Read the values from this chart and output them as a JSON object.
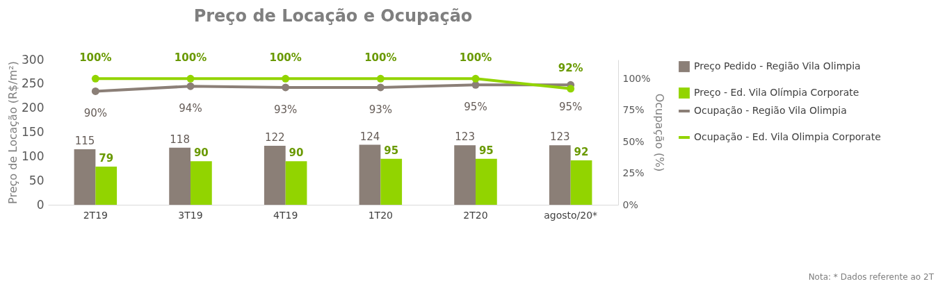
{
  "chart_data": {
    "type": "bar",
    "title": "Preço de Locação e Ocupação",
    "ylabel": "Preço de Locação (R$/m²)",
    "y2label": "Ocupação (%)",
    "categories": [
      "2T19",
      "3T19",
      "4T19",
      "1T20",
      "2T20",
      "agosto/20*"
    ],
    "ylim": [
      0,
      300
    ],
    "yticks": [
      0,
      50,
      100,
      150,
      200,
      250,
      300
    ],
    "y2lim": [
      0,
      115
    ],
    "y2ticks": [
      {
        "value": 0,
        "label": "0%"
      },
      {
        "value": 25,
        "label": "25%"
      },
      {
        "value": 50,
        "label": "50%"
      },
      {
        "value": 75,
        "label": "75%"
      },
      {
        "value": 100,
        "label": "100%"
      }
    ],
    "series": [
      {
        "name": "Preço Pedido - Região Vila Olimpia",
        "color": "#8b7f77",
        "values": [
          115,
          118,
          122,
          124,
          123,
          123
        ],
        "value_labels": [
          "115",
          "118",
          "122",
          "124",
          "123",
          "123"
        ]
      },
      {
        "name": "Preço - Ed. Vila Olímpia Corporate",
        "color": "#92d400",
        "values": [
          79,
          90,
          90,
          95,
          95,
          92
        ],
        "value_labels": [
          "79",
          "90",
          "90",
          "95",
          "95",
          "92"
        ]
      },
      {
        "name": "Ocupação - Região Vila Olimpia",
        "type": "line",
        "axis": "y2",
        "color": "#8b7f77",
        "values": [
          90,
          94,
          93,
          93,
          95,
          95
        ],
        "value_labels": [
          "90%",
          "94%",
          "93%",
          "93%",
          "95%",
          "95%"
        ]
      },
      {
        "name": "Ocupação - Ed. Vila Olimpia Corporate",
        "type": "line",
        "axis": "y2",
        "color": "#92d400",
        "values": [
          100,
          100,
          100,
          100,
          100,
          92
        ],
        "value_labels": [
          "100%",
          "100%",
          "100%",
          "100%",
          "100%",
          "92%"
        ]
      }
    ],
    "marker": "circle",
    "grid": false,
    "legend": "right",
    "annotations": [
      "Nota: * Dados referente ao 2T"
    ]
  }
}
